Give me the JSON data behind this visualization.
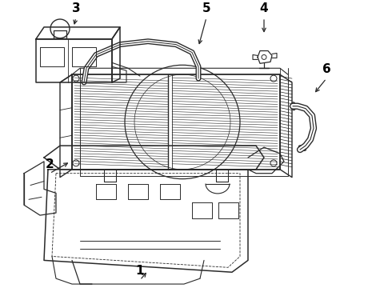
{
  "background_color": "#ffffff",
  "line_color": "#2a2a2a",
  "line_width": 1.0,
  "label_color": "#000000",
  "figsize": [
    4.9,
    3.6
  ],
  "dpi": 100
}
